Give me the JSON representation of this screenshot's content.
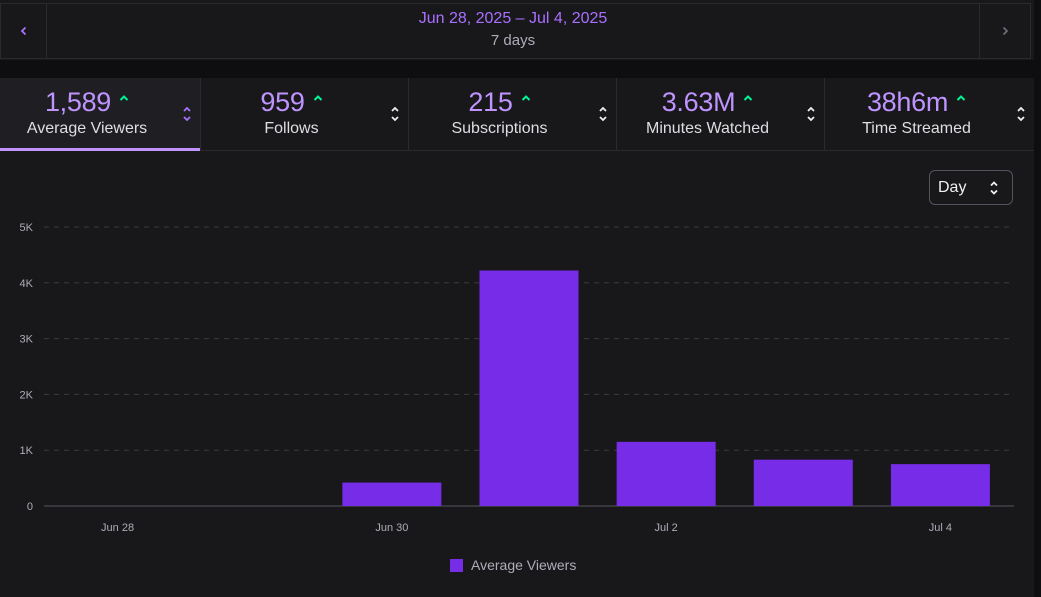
{
  "date_nav": {
    "range": "Jun 28, 2025 – Jul 4, 2025",
    "duration": "7 days"
  },
  "metrics": [
    {
      "value": "1,589",
      "label": "Average Viewers",
      "trend": "up",
      "active": true
    },
    {
      "value": "959",
      "label": "Follows",
      "trend": "up",
      "active": false
    },
    {
      "value": "215",
      "label": "Subscriptions",
      "trend": "up",
      "active": false
    },
    {
      "value": "3.63M",
      "label": "Minutes Watched",
      "trend": "up",
      "active": false
    },
    {
      "value": "38h6m",
      "label": "Time Streamed",
      "trend": "up",
      "active": false
    }
  ],
  "interval_select": {
    "value": "Day"
  },
  "icons": {
    "prev": "chevron-left-icon",
    "next": "chevron-right-icon",
    "trend": "trend-up-icon",
    "sort": "sort-updown-icon"
  },
  "colors": {
    "accent": "#bf94ff",
    "bar": "#772ce8",
    "trend_up": "#00f593"
  },
  "chart_data": {
    "type": "bar",
    "categories": [
      "Jun 28",
      "Jun 29",
      "Jun 30",
      "Jul 1",
      "Jul 2",
      "Jul 3",
      "Jul 4"
    ],
    "x_tick_labels": [
      "Jun 28",
      "",
      "Jun 30",
      "",
      "Jul 2",
      "",
      "Jul 4"
    ],
    "series": [
      {
        "name": "Average Viewers",
        "values": [
          0,
          0,
          420,
          4220,
          1150,
          830,
          750
        ]
      }
    ],
    "y_ticks": [
      "0",
      "1K",
      "2K",
      "3K",
      "4K",
      "5K"
    ],
    "ylim": [
      0,
      5000
    ],
    "grid": true,
    "legend": "bottom-center"
  }
}
